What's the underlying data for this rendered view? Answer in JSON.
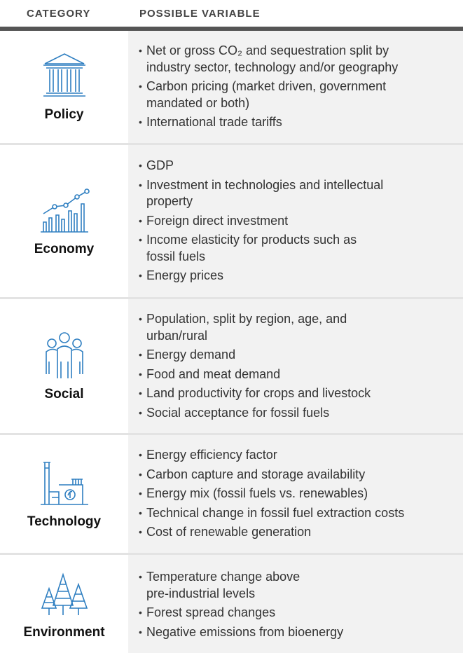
{
  "header": {
    "category": "CATEGORY",
    "variable": "POSSIBLE VARIABLE"
  },
  "rows": [
    {
      "category": "Policy",
      "items": [
        [
          "Net or gross CO₂ and sequestration split by",
          "industry sector, technology and/or geography"
        ],
        [
          "Carbon pricing (market driven, government",
          "mandated or both)"
        ],
        [
          "International trade tariffs"
        ]
      ]
    },
    {
      "category": "Economy",
      "items": [
        [
          "GDP"
        ],
        [
          "Investment in technologies and intellectual",
          "property"
        ],
        [
          "Foreign direct investment"
        ],
        [
          "Income elasticity for products such as",
          "fossil fuels"
        ],
        [
          "Energy prices"
        ]
      ]
    },
    {
      "category": "Social",
      "items": [
        [
          "Population, split by region, age, and",
          "urban/rural"
        ],
        [
          "Energy demand"
        ],
        [
          "Food and meat demand"
        ],
        [
          "Land productivity for crops and livestock"
        ],
        [
          "Social acceptance for fossil fuels"
        ]
      ]
    },
    {
      "category": "Technology",
      "items": [
        [
          "Energy efficiency factor"
        ],
        [
          "Carbon capture and storage availability"
        ],
        [
          "Energy mix (fossil fuels vs. renewables)"
        ],
        [
          "Technical change in fossil fuel extraction costs"
        ],
        [
          "Cost of renewable generation"
        ]
      ]
    },
    {
      "category": "Environment",
      "items": [
        [
          "Temperature change above",
          "pre-industrial levels"
        ],
        [
          "Forest spread changes"
        ],
        [
          "Negative emissions from bioenergy"
        ]
      ]
    }
  ]
}
